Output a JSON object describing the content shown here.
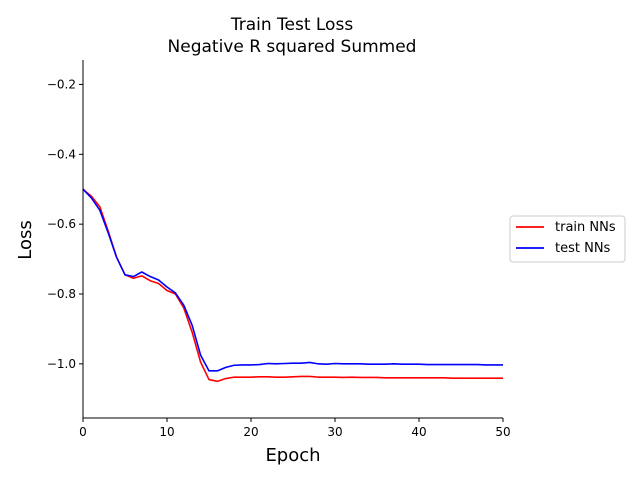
{
  "chart_data": {
    "type": "line",
    "title": "Train Test Loss\nNegative R squared Summed",
    "title_lines": [
      "Train Test Loss",
      "Negative R squared Summed"
    ],
    "xlabel": "Epoch",
    "ylabel": "Loss",
    "xlim": [
      0,
      50
    ],
    "ylim": [
      -1.155,
      -0.13
    ],
    "x_ticks": [
      0,
      10,
      20,
      30,
      40,
      50
    ],
    "x_tick_labels": [
      "0",
      "10",
      "20",
      "30",
      "40",
      "50"
    ],
    "y_ticks": [
      -0.2,
      -0.4,
      -0.6,
      -0.8,
      -1.0
    ],
    "y_tick_labels": [
      "−0.2",
      "−0.4",
      "−0.6",
      "−0.8",
      "−1.0"
    ],
    "grid": false,
    "legend_position": "outside-right",
    "x": [
      0,
      1,
      2,
      3,
      4,
      5,
      6,
      7,
      8,
      9,
      10,
      11,
      12,
      13,
      14,
      15,
      16,
      17,
      18,
      19,
      20,
      21,
      22,
      23,
      24,
      25,
      26,
      27,
      28,
      29,
      30,
      31,
      32,
      33,
      34,
      35,
      36,
      37,
      38,
      39,
      40,
      41,
      42,
      43,
      44,
      45,
      46,
      47,
      48,
      49,
      50
    ],
    "series": [
      {
        "name": "train NNs",
        "color": "#ff0000",
        "values": [
          -0.5,
          -0.52,
          -0.55,
          -0.62,
          -0.695,
          -0.745,
          -0.755,
          -0.748,
          -0.762,
          -0.77,
          -0.79,
          -0.8,
          -0.84,
          -0.91,
          -0.995,
          -1.045,
          -1.05,
          -1.042,
          -1.038,
          -1.038,
          -1.038,
          -1.037,
          -1.037,
          -1.038,
          -1.038,
          -1.037,
          -1.036,
          -1.036,
          -1.038,
          -1.038,
          -1.038,
          -1.039,
          -1.038,
          -1.039,
          -1.039,
          -1.039,
          -1.04,
          -1.04,
          -1.04,
          -1.04,
          -1.04,
          -1.04,
          -1.04,
          -1.04,
          -1.041,
          -1.041,
          -1.041,
          -1.041,
          -1.041,
          -1.041,
          -1.041
        ]
      },
      {
        "name": "test NNs",
        "color": "#0000ff",
        "values": [
          -0.5,
          -0.525,
          -0.56,
          -0.625,
          -0.695,
          -0.745,
          -0.75,
          -0.737,
          -0.75,
          -0.76,
          -0.78,
          -0.797,
          -0.832,
          -0.89,
          -0.975,
          -1.02,
          -1.02,
          -1.01,
          -1.004,
          -1.003,
          -1.003,
          -1.002,
          -0.999,
          -1.0,
          -0.999,
          -0.998,
          -0.998,
          -0.996,
          -1.0,
          -1.001,
          -0.999,
          -1.0,
          -1.0,
          -1.0,
          -1.001,
          -1.001,
          -1.001,
          -1.0,
          -1.001,
          -1.001,
          -1.001,
          -1.002,
          -1.002,
          -1.002,
          -1.002,
          -1.002,
          -1.002,
          -1.002,
          -1.003,
          -1.003,
          -1.003
        ]
      }
    ]
  }
}
